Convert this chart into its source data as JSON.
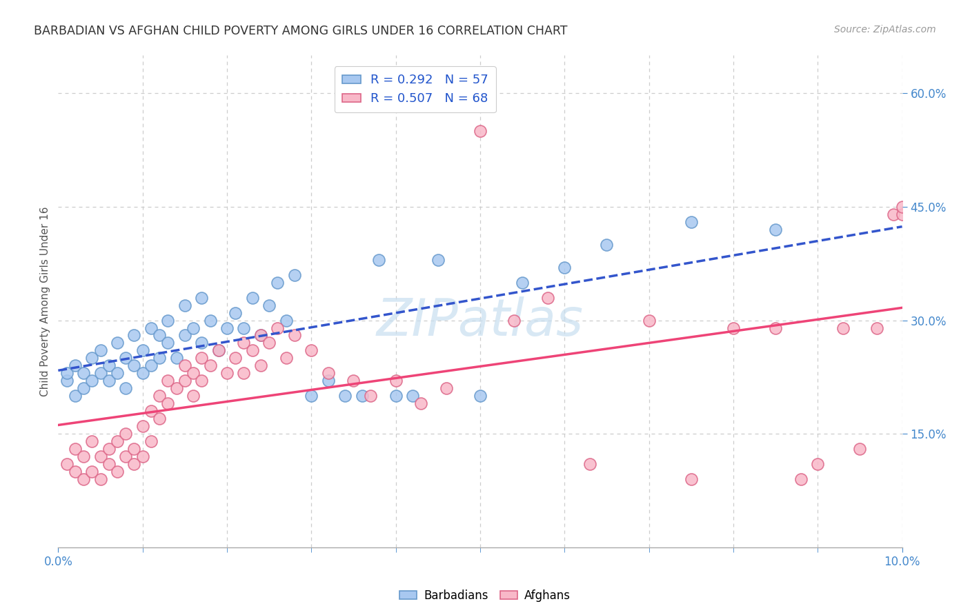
{
  "title": "BARBADIAN VS AFGHAN CHILD POVERTY AMONG GIRLS UNDER 16 CORRELATION CHART",
  "source": "Source: ZipAtlas.com",
  "ylabel": "Child Poverty Among Girls Under 16",
  "watermark": "ZIPatlas",
  "xlim": [
    0.0,
    0.1
  ],
  "ylim": [
    0.0,
    0.65
  ],
  "xtick_positions": [
    0.0,
    0.1
  ],
  "xtick_labels": [
    "0.0%",
    "10.0%"
  ],
  "yticks_right": [
    0.15,
    0.3,
    0.45,
    0.6
  ],
  "ytick_labels_right": [
    "15.0%",
    "30.0%",
    "45.0%",
    "60.0%"
  ],
  "legend_r1": "0.292",
  "legend_n1": "57",
  "legend_r2": "0.507",
  "legend_n2": "68",
  "barbadian_color": "#a8c8f0",
  "barbadian_edge": "#6699cc",
  "afghan_color": "#f8b8c8",
  "afghan_edge": "#dd6688",
  "line1_color": "#3355cc",
  "line2_color": "#ee4477",
  "background_color": "#ffffff",
  "grid_color": "#cccccc",
  "title_color": "#333333",
  "watermark_color": "#c8dff0",
  "barbadians_scatter_x": [
    0.001,
    0.001,
    0.002,
    0.002,
    0.003,
    0.003,
    0.004,
    0.004,
    0.005,
    0.005,
    0.006,
    0.006,
    0.007,
    0.007,
    0.008,
    0.008,
    0.009,
    0.009,
    0.01,
    0.01,
    0.011,
    0.011,
    0.012,
    0.012,
    0.013,
    0.013,
    0.014,
    0.015,
    0.015,
    0.016,
    0.017,
    0.017,
    0.018,
    0.019,
    0.02,
    0.021,
    0.022,
    0.023,
    0.024,
    0.025,
    0.026,
    0.027,
    0.028,
    0.03,
    0.032,
    0.034,
    0.036,
    0.038,
    0.04,
    0.042,
    0.045,
    0.05,
    0.055,
    0.06,
    0.065,
    0.075,
    0.085
  ],
  "barbadians_scatter_y": [
    0.22,
    0.23,
    0.2,
    0.24,
    0.21,
    0.23,
    0.22,
    0.25,
    0.23,
    0.26,
    0.22,
    0.24,
    0.23,
    0.27,
    0.21,
    0.25,
    0.24,
    0.28,
    0.23,
    0.26,
    0.24,
    0.29,
    0.25,
    0.28,
    0.27,
    0.3,
    0.25,
    0.28,
    0.32,
    0.29,
    0.27,
    0.33,
    0.3,
    0.26,
    0.29,
    0.31,
    0.29,
    0.33,
    0.28,
    0.32,
    0.35,
    0.3,
    0.36,
    0.2,
    0.22,
    0.2,
    0.2,
    0.38,
    0.2,
    0.2,
    0.38,
    0.2,
    0.35,
    0.37,
    0.4,
    0.43,
    0.42
  ],
  "afghans_scatter_x": [
    0.001,
    0.002,
    0.002,
    0.003,
    0.003,
    0.004,
    0.004,
    0.005,
    0.005,
    0.006,
    0.006,
    0.007,
    0.007,
    0.008,
    0.008,
    0.009,
    0.009,
    0.01,
    0.01,
    0.011,
    0.011,
    0.012,
    0.012,
    0.013,
    0.013,
    0.014,
    0.015,
    0.015,
    0.016,
    0.016,
    0.017,
    0.017,
    0.018,
    0.019,
    0.02,
    0.021,
    0.022,
    0.022,
    0.023,
    0.024,
    0.024,
    0.025,
    0.026,
    0.027,
    0.028,
    0.03,
    0.032,
    0.035,
    0.037,
    0.04,
    0.043,
    0.046,
    0.05,
    0.054,
    0.058,
    0.063,
    0.07,
    0.075,
    0.08,
    0.085,
    0.088,
    0.09,
    0.093,
    0.095,
    0.097,
    0.099,
    0.1,
    0.1
  ],
  "afghans_scatter_y": [
    0.11,
    0.1,
    0.13,
    0.09,
    0.12,
    0.1,
    0.14,
    0.09,
    0.12,
    0.11,
    0.13,
    0.1,
    0.14,
    0.12,
    0.15,
    0.11,
    0.13,
    0.12,
    0.16,
    0.14,
    0.18,
    0.2,
    0.17,
    0.22,
    0.19,
    0.21,
    0.22,
    0.24,
    0.2,
    0.23,
    0.25,
    0.22,
    0.24,
    0.26,
    0.23,
    0.25,
    0.27,
    0.23,
    0.26,
    0.28,
    0.24,
    0.27,
    0.29,
    0.25,
    0.28,
    0.26,
    0.23,
    0.22,
    0.2,
    0.22,
    0.19,
    0.21,
    0.55,
    0.3,
    0.33,
    0.11,
    0.3,
    0.09,
    0.29,
    0.29,
    0.09,
    0.11,
    0.29,
    0.13,
    0.29,
    0.44,
    0.44,
    0.45
  ]
}
